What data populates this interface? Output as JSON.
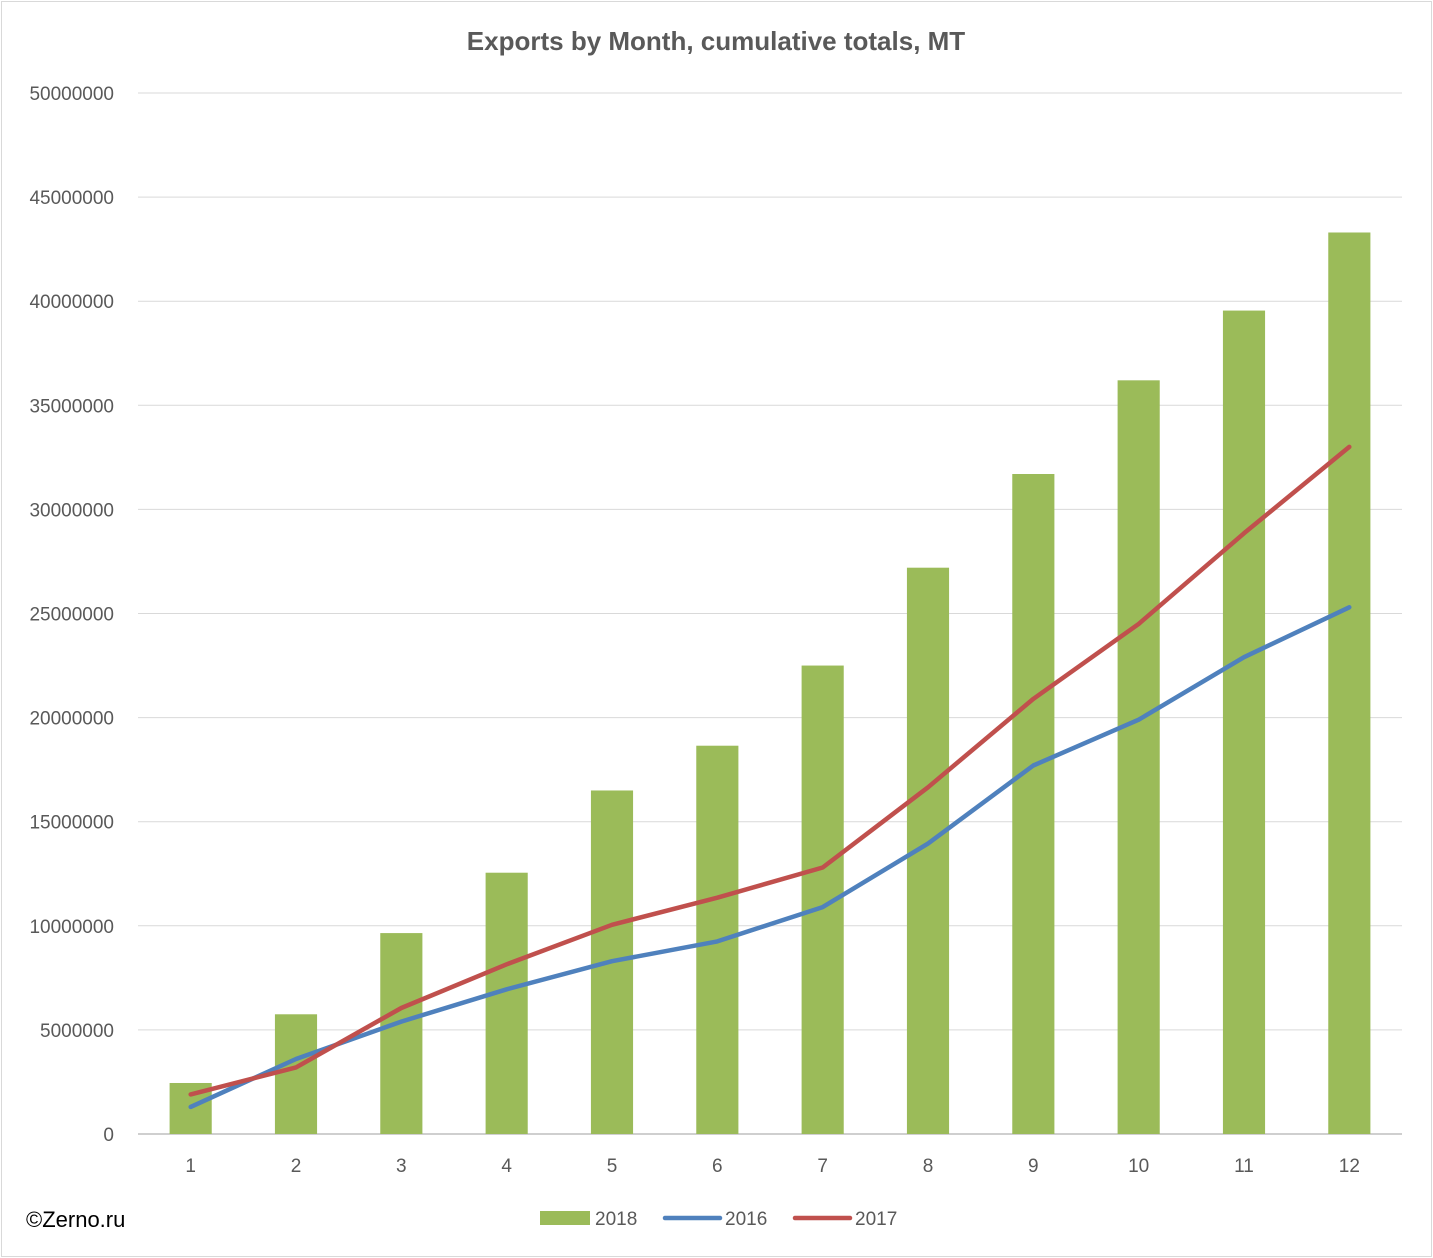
{
  "chart_data": {
    "type": "bar",
    "title": "Exports by Month, cumulative totals, MT",
    "xlabel": "",
    "ylabel": "",
    "categories": [
      "1",
      "2",
      "3",
      "4",
      "5",
      "6",
      "7",
      "8",
      "9",
      "10",
      "11",
      "12"
    ],
    "ylim": [
      0,
      50000000
    ],
    "y_ticks": [
      0,
      5000000,
      10000000,
      15000000,
      20000000,
      25000000,
      30000000,
      35000000,
      40000000,
      45000000,
      50000000
    ],
    "grid": true,
    "legend_position": "bottom",
    "series": [
      {
        "name": "2018",
        "type": "bar",
        "color": "#9bbb59",
        "values": [
          2450000,
          5750000,
          9650000,
          12550000,
          16500000,
          18650000,
          22500000,
          27200000,
          31700000,
          36200000,
          39550000,
          43300000
        ]
      },
      {
        "name": "2016",
        "type": "line",
        "color": "#4f81bd",
        "values": [
          1300000,
          3600000,
          5400000,
          6950000,
          8300000,
          9250000,
          10900000,
          13950000,
          17700000,
          19900000,
          22900000,
          25300000
        ]
      },
      {
        "name": "2017",
        "type": "line",
        "color": "#c0504d",
        "values": [
          1900000,
          3200000,
          6050000,
          8150000,
          10050000,
          11350000,
          12800000,
          16650000,
          20900000,
          24500000,
          28850000,
          33000000
        ]
      }
    ]
  },
  "watermark": "©Zerno.ru"
}
